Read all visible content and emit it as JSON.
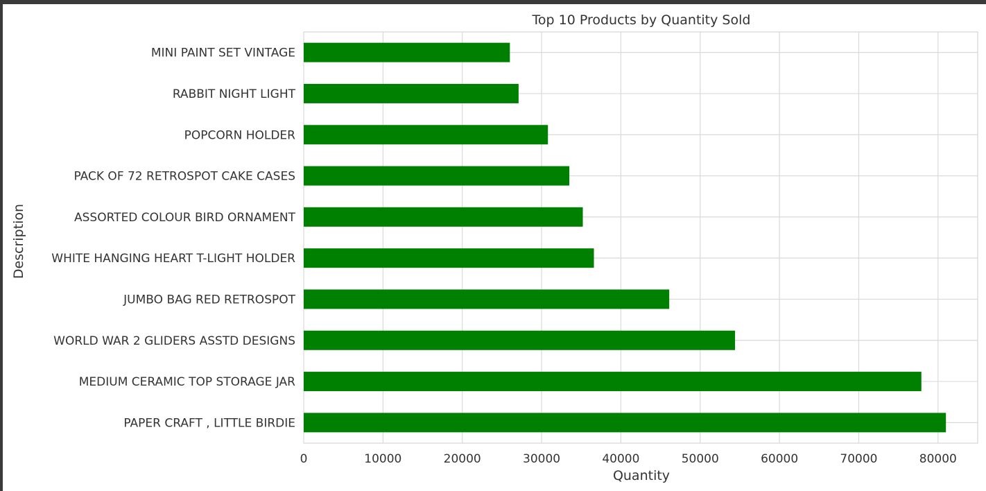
{
  "chart_data": {
    "type": "bar",
    "orientation": "horizontal",
    "title": "Top 10 Products by Quantity Sold",
    "xlabel": "Quantity",
    "ylabel": "Description",
    "xlim": [
      0,
      85000
    ],
    "xticks": [
      0,
      10000,
      20000,
      30000,
      40000,
      50000,
      60000,
      70000,
      80000
    ],
    "grid": true,
    "bar_color": "#008000",
    "categories": [
      "MINI PAINT SET VINTAGE ",
      "RABBIT NIGHT LIGHT",
      "POPCORN HOLDER",
      "PACK OF 72 RETROSPOT CAKE CASES",
      "ASSORTED COLOUR BIRD ORNAMENT",
      "WHITE HANGING HEART T-LIGHT HOLDER",
      "JUMBO BAG RED RETROSPOT",
      "WORLD WAR 2 GLIDERS ASSTD DESIGNS",
      "MEDIUM CERAMIC TOP STORAGE JAR",
      "PAPER CRAFT , LITTLE BIRDIE"
    ],
    "values": [
      26000,
      27100,
      30800,
      33500,
      35200,
      36600,
      46100,
      54400,
      77900,
      80995
    ]
  }
}
